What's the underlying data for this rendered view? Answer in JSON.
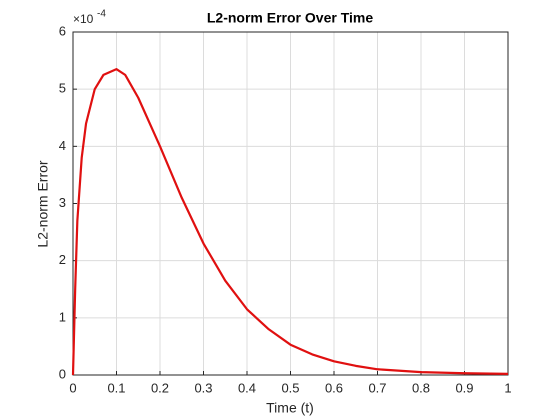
{
  "chart_data": {
    "type": "line",
    "title": "L2-norm Error Over Time",
    "x_label": "Time (t)",
    "y_label": "L2-norm Error",
    "y_multiplier": "×10",
    "y_multiplier_exponent": "-4",
    "x": [
      0,
      0.005,
      0.01,
      0.02,
      0.03,
      0.05,
      0.07,
      0.1,
      0.12,
      0.15,
      0.2,
      0.25,
      0.3,
      0.35,
      0.4,
      0.45,
      0.5,
      0.55,
      0.6,
      0.65,
      0.7,
      0.8,
      0.9,
      1.0
    ],
    "series": [
      {
        "name": "L2-norm Error",
        "color": "#e01010",
        "values": [
          0,
          1.5,
          2.7,
          3.8,
          4.4,
          5.0,
          5.25,
          5.35,
          5.25,
          4.85,
          4.0,
          3.1,
          2.3,
          1.65,
          1.15,
          0.8,
          0.53,
          0.36,
          0.24,
          0.16,
          0.1,
          0.05,
          0.03,
          0.02
        ]
      }
    ],
    "xlim": [
      0,
      1
    ],
    "ylim": [
      0,
      6
    ],
    "xticks": [
      0,
      0.1,
      0.2,
      0.3,
      0.4,
      0.5,
      0.6,
      0.7,
      0.8,
      0.9,
      1
    ],
    "yticks": [
      0,
      1,
      2,
      3,
      4,
      5,
      6
    ],
    "grid": true
  }
}
